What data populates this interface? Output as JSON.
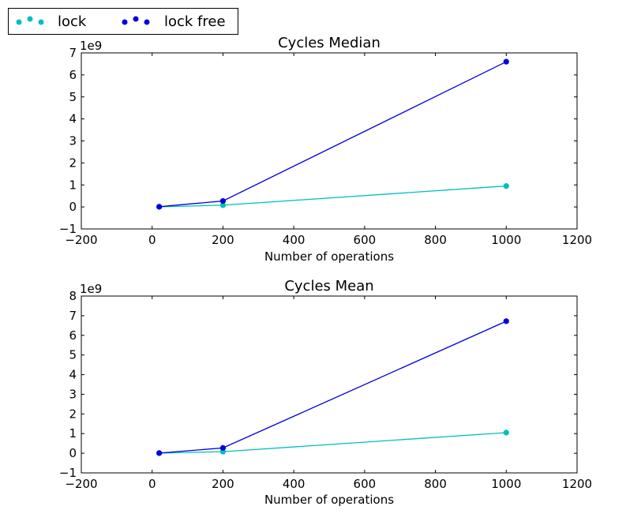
{
  "legend": {
    "entries": [
      {
        "label": "lock",
        "color": "#00bfbf"
      },
      {
        "label": "lock free",
        "color": "#0000e0"
      }
    ]
  },
  "chart_data": [
    {
      "type": "line",
      "title": "Cycles Median",
      "xlabel": "Number of operations",
      "ylabel": "",
      "offset_text": "1e9",
      "xlim": [
        -200,
        1200
      ],
      "ylim": [
        -1,
        7
      ],
      "xticks": [
        -200,
        0,
        200,
        400,
        600,
        800,
        1000,
        1200
      ],
      "xtick_labels": [
        "−200",
        "0",
        "200",
        "400",
        "600",
        "800",
        "1000",
        "1200"
      ],
      "yticks": [
        -1,
        0,
        1,
        2,
        3,
        4,
        5,
        6,
        7
      ],
      "ytick_labels": [
        "−1",
        "0",
        "1",
        "2",
        "3",
        "4",
        "5",
        "6",
        "7"
      ],
      "grid": false,
      "series": [
        {
          "name": "lock",
          "color": "#00bfbf",
          "x": [
            20,
            200,
            1000
          ],
          "y": [
            0.005,
            0.08,
            0.95
          ]
        },
        {
          "name": "lock free",
          "color": "#0000e0",
          "x": [
            20,
            200,
            1000
          ],
          "y": [
            0.01,
            0.27,
            6.6
          ]
        }
      ]
    },
    {
      "type": "line",
      "title": "Cycles Mean",
      "xlabel": "Number of operations",
      "ylabel": "",
      "offset_text": "1e9",
      "xlim": [
        -200,
        1200
      ],
      "ylim": [
        -1,
        8
      ],
      "xticks": [
        -200,
        0,
        200,
        400,
        600,
        800,
        1000,
        1200
      ],
      "xtick_labels": [
        "−200",
        "0",
        "200",
        "400",
        "600",
        "800",
        "1000",
        "1200"
      ],
      "yticks": [
        -1,
        0,
        1,
        2,
        3,
        4,
        5,
        6,
        7,
        8
      ],
      "ytick_labels": [
        "−1",
        "0",
        "1",
        "2",
        "3",
        "4",
        "5",
        "6",
        "7",
        "8"
      ],
      "grid": false,
      "series": [
        {
          "name": "lock",
          "color": "#00bfbf",
          "x": [
            20,
            200,
            1000
          ],
          "y": [
            0.005,
            0.08,
            1.05
          ]
        },
        {
          "name": "lock free",
          "color": "#0000e0",
          "x": [
            20,
            200,
            1000
          ],
          "y": [
            0.01,
            0.27,
            6.72
          ]
        }
      ]
    }
  ]
}
